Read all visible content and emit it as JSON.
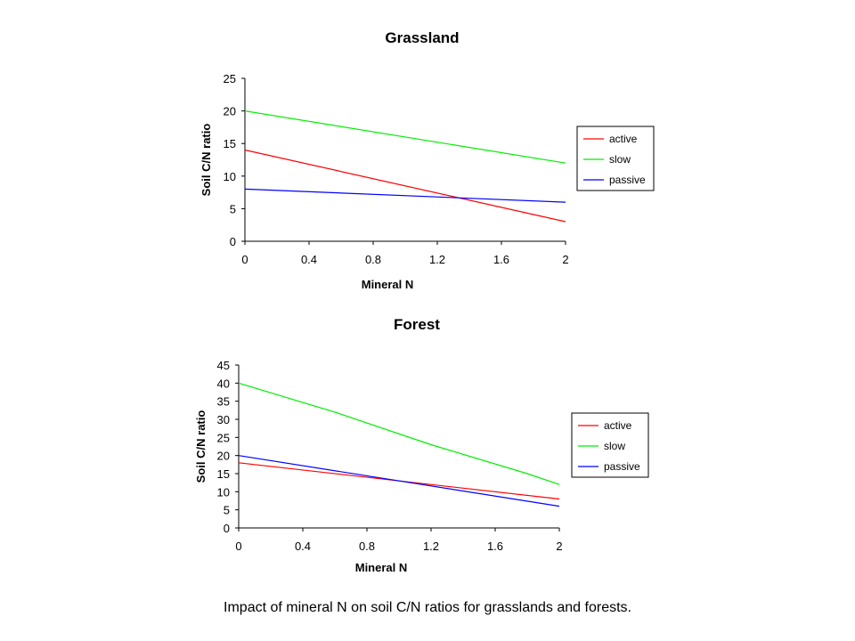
{
  "caption": "Impact of mineral N on soil C/N ratios for grasslands and forests.",
  "chart_data": [
    {
      "type": "line",
      "title": "Grassland",
      "xlabel": "Mineral N",
      "ylabel": "Soil C/N ratio",
      "xlim": [
        0,
        2
      ],
      "ylim": [
        0,
        25
      ],
      "xticks": [
        0,
        0.4,
        0.8,
        1.2,
        1.6,
        2
      ],
      "yticks": [
        0,
        5,
        10,
        15,
        20,
        25
      ],
      "grid": false,
      "legend_position": "right",
      "series": [
        {
          "name": "active",
          "color": "#ff0000",
          "x": [
            0,
            2
          ],
          "y": [
            14,
            3
          ]
        },
        {
          "name": "slow",
          "color": "#00ee00",
          "x": [
            0,
            2
          ],
          "y": [
            20,
            12
          ]
        },
        {
          "name": "passive",
          "color": "#0000ff",
          "x": [
            0,
            2
          ],
          "y": [
            8,
            6
          ]
        }
      ]
    },
    {
      "type": "line",
      "title": "Forest",
      "xlabel": "Mineral N",
      "ylabel": "Soil C/N ratio",
      "xlim": [
        0,
        2
      ],
      "ylim": [
        0,
        45
      ],
      "xticks": [
        0,
        0.4,
        0.8,
        1.2,
        1.6,
        2
      ],
      "yticks": [
        0,
        5,
        10,
        15,
        20,
        25,
        30,
        35,
        40,
        45
      ],
      "grid": false,
      "legend_position": "right",
      "series": [
        {
          "name": "active",
          "color": "#ff0000",
          "x": [
            0,
            2
          ],
          "y": [
            18,
            8
          ]
        },
        {
          "name": "slow",
          "color": "#00ee00",
          "x": [
            0,
            0.6,
            1.2,
            1.8,
            2
          ],
          "y": [
            40,
            32,
            23,
            15,
            12
          ]
        },
        {
          "name": "passive",
          "color": "#0000ff",
          "x": [
            0,
            2
          ],
          "y": [
            20,
            6
          ]
        }
      ]
    }
  ]
}
